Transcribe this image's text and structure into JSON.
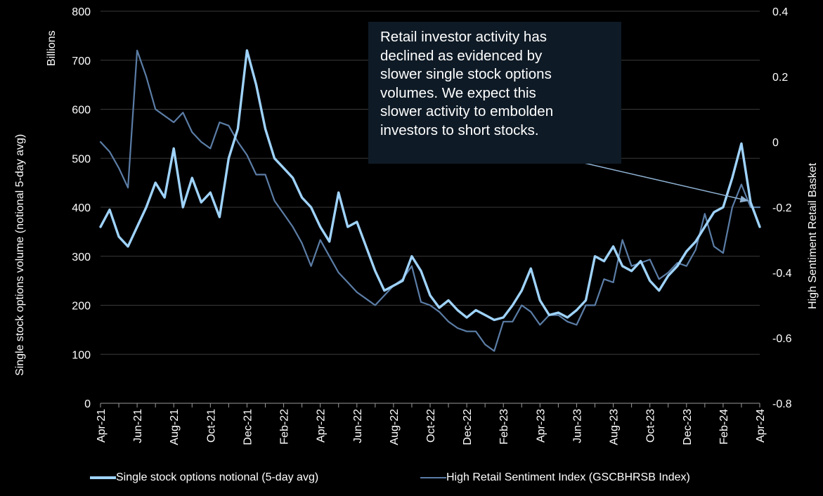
{
  "chart_data": {
    "type": "line",
    "title": "",
    "left_axis": {
      "label": "Single stock options volume  (notional 5-day  avg)",
      "unit_label": "Billions",
      "ylim": [
        0,
        800
      ],
      "ticks": [
        "0",
        "100",
        "200",
        "300",
        "400",
        "500",
        "600",
        "700",
        "800"
      ]
    },
    "right_axis": {
      "label": "High Sentiment Retail Basket",
      "ylim": [
        -0.8,
        0.4
      ],
      "ticks": [
        "-0.8",
        "-0.6",
        "-0.4",
        "-0.2",
        "0",
        "0.2",
        "0.4"
      ]
    },
    "x_axis": {
      "months_span": 36,
      "tick_labels": [
        "Apr-21",
        "Jun-21",
        "Aug-21",
        "Oct-21",
        "Dec-21",
        "Feb-22",
        "Apr-22",
        "Jun-22",
        "Aug-22",
        "Oct-22",
        "Dec-22",
        "Feb-23",
        "Apr-23",
        "Jun-23",
        "Aug-23",
        "Oct-23",
        "Dec-23",
        "Feb-24",
        "Apr-24"
      ]
    },
    "grid": true,
    "legend_position": "bottom",
    "series": [
      {
        "name": "Single stock options notional (5-day avg)",
        "axis": "left",
        "color": "#9fd3fb",
        "x_months": [
          0,
          0.5,
          1,
          1.5,
          2,
          2.5,
          3,
          3.5,
          4,
          4.5,
          5,
          5.5,
          6,
          6.5,
          7,
          7.5,
          8,
          8.5,
          9,
          9.5,
          10,
          10.5,
          11,
          11.5,
          12,
          12.5,
          13,
          13.5,
          14,
          14.5,
          15,
          15.5,
          16,
          16.5,
          17,
          17.5,
          18,
          18.5,
          19,
          19.5,
          20,
          20.5,
          21,
          21.5,
          22,
          22.5,
          23,
          23.5,
          24,
          24.5,
          25,
          25.5,
          26,
          26.5,
          27,
          27.5,
          28,
          28.5,
          29,
          29.5,
          30,
          30.5,
          31,
          31.5,
          32,
          32.5,
          33,
          33.5,
          34,
          34.5,
          35,
          35.5,
          36
        ],
        "values": [
          360,
          395,
          340,
          320,
          360,
          400,
          450,
          420,
          520,
          400,
          460,
          410,
          430,
          380,
          500,
          560,
          720,
          650,
          560,
          500,
          480,
          460,
          420,
          400,
          360,
          330,
          430,
          360,
          370,
          320,
          270,
          230,
          240,
          250,
          300,
          270,
          220,
          195,
          210,
          190,
          175,
          190,
          180,
          170,
          175,
          200,
          230,
          275,
          210,
          180,
          185,
          175,
          190,
          210,
          300,
          290,
          320,
          280,
          270,
          290,
          250,
          230,
          260,
          280,
          310,
          330,
          360,
          390,
          400,
          460,
          530,
          410,
          360
        ]
      },
      {
        "name": "High Retail Sentiment Index (GSCBHRSB Index)",
        "axis": "right",
        "color": "#5b7da6",
        "x_months": [
          0,
          0.5,
          1,
          1.5,
          2,
          2.5,
          3,
          3.5,
          4,
          4.5,
          5,
          5.5,
          6,
          6.5,
          7,
          7.5,
          8,
          8.5,
          9,
          9.5,
          10,
          10.5,
          11,
          11.5,
          12,
          12.5,
          13,
          13.5,
          14,
          14.5,
          15,
          15.5,
          16,
          16.5,
          17,
          17.5,
          18,
          18.5,
          19,
          19.5,
          20,
          20.5,
          21,
          21.5,
          22,
          22.5,
          23,
          23.5,
          24,
          24.5,
          25,
          25.5,
          26,
          26.5,
          27,
          27.5,
          28,
          28.5,
          29,
          29.5,
          30,
          30.5,
          31,
          31.5,
          32,
          32.5,
          33,
          33.5,
          34,
          34.5,
          35,
          35.5,
          36
        ],
        "values": [
          0.0,
          -0.03,
          -0.08,
          -0.14,
          0.28,
          0.2,
          0.1,
          0.08,
          0.06,
          0.09,
          0.03,
          0.0,
          -0.02,
          0.06,
          0.05,
          0.0,
          -0.04,
          -0.1,
          -0.1,
          -0.18,
          -0.22,
          -0.26,
          -0.31,
          -0.38,
          -0.3,
          -0.35,
          -0.4,
          -0.43,
          -0.46,
          -0.48,
          -0.5,
          -0.47,
          -0.44,
          -0.42,
          -0.38,
          -0.49,
          -0.5,
          -0.52,
          -0.55,
          -0.57,
          -0.58,
          -0.58,
          -0.62,
          -0.64,
          -0.55,
          -0.55,
          -0.5,
          -0.52,
          -0.56,
          -0.53,
          -0.53,
          -0.55,
          -0.56,
          -0.5,
          -0.5,
          -0.42,
          -0.43,
          -0.3,
          -0.38,
          -0.37,
          -0.36,
          -0.42,
          -0.4,
          -0.37,
          -0.38,
          -0.33,
          -0.22,
          -0.32,
          -0.34,
          -0.2,
          -0.13,
          -0.2,
          -0.2
        ]
      }
    ],
    "annotation": {
      "text": "Retail investor activity has\ndeclined as evidenced by\nslower single stock options\nvolumes. We expect this\nslower activity to embolden\ninvestors to short stocks.",
      "arrow_to_month": 35.4
    },
    "colors": {
      "background": "#000000",
      "grid": "#3a3a3a",
      "annotation_bg": "#0e1a25",
      "arrow": "#8fb3d4"
    }
  }
}
